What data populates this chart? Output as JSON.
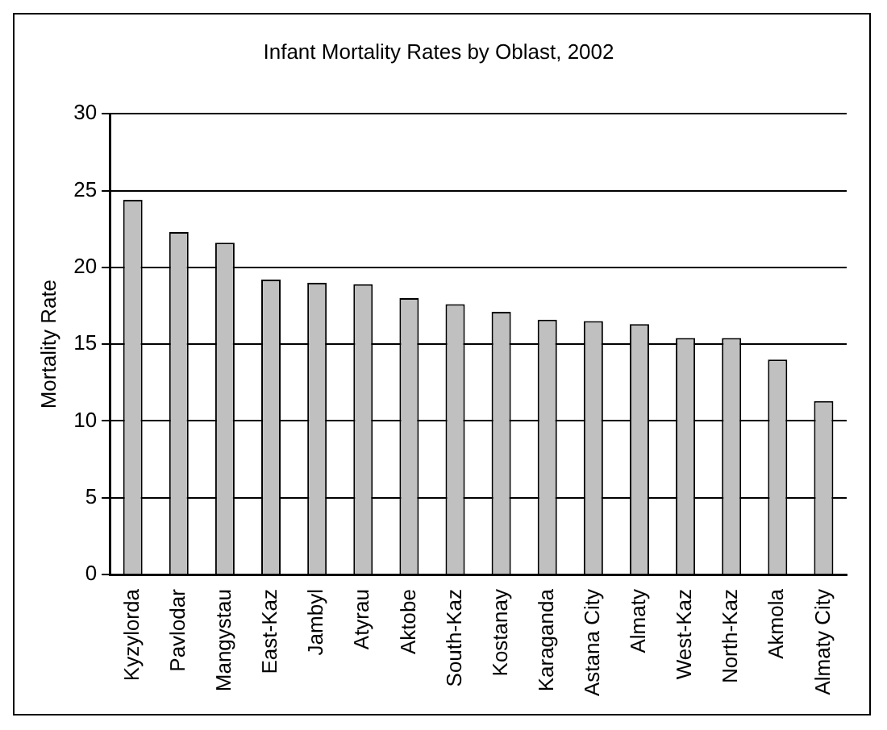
{
  "chart_data": {
    "type": "bar",
    "title": "Infant Mortality Rates by Oblast, 2002",
    "ylabel": "Mortality Rate",
    "categories": [
      "Kyzylorda",
      "Pavlodar",
      "Mangystau",
      "East-Kaz",
      "Jambyl",
      "Atyrau",
      "Aktobe",
      "South-Kaz",
      "Kostanay",
      "Karaganda",
      "Astana City",
      "Almaty",
      "West-Kaz",
      "North-Kaz",
      "Akmola",
      "Almaty City"
    ],
    "values": [
      24.4,
      22.3,
      21.6,
      19.2,
      19.0,
      18.9,
      18.0,
      17.6,
      17.1,
      16.6,
      16.5,
      16.3,
      15.4,
      15.4,
      14.0,
      11.3
    ],
    "color": "#c0c0c0",
    "ylim": [
      0,
      30
    ],
    "yticks": [
      0,
      5,
      10,
      15,
      20,
      25,
      30
    ],
    "grid": "y",
    "legend": false
  }
}
